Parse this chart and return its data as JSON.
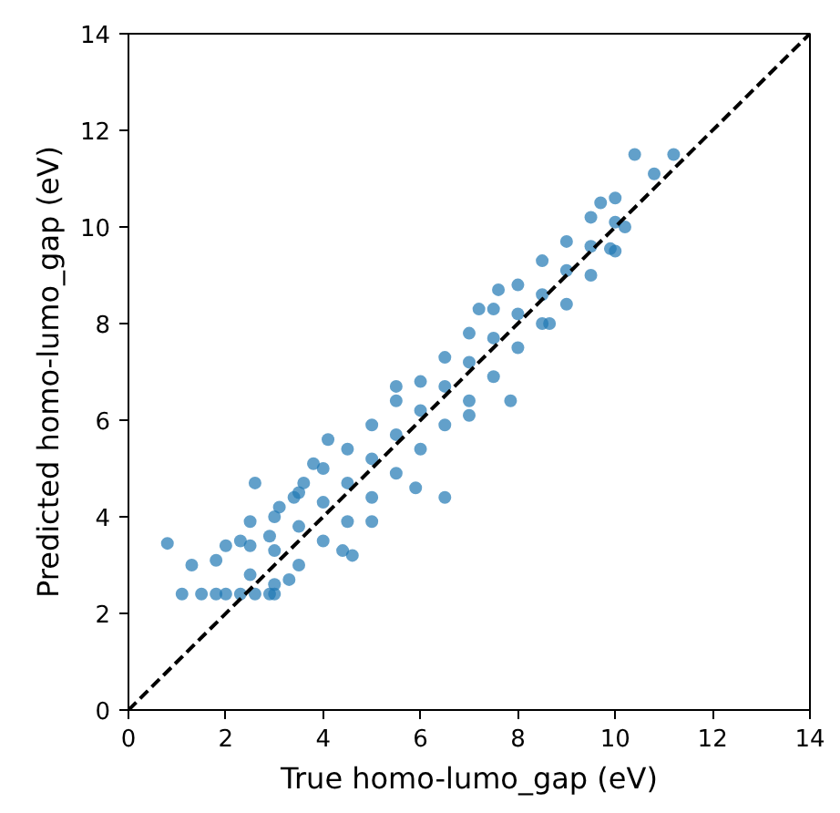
{
  "chart_data": {
    "type": "scatter",
    "xlabel": "True homo-lumo_gap (eV)",
    "ylabel": "Predicted homo-lumo_gap (eV)",
    "xlim": [
      0,
      14
    ],
    "ylim": [
      0,
      14
    ],
    "xticks": [
      0,
      2,
      4,
      6,
      8,
      10,
      12,
      14
    ],
    "yticks": [
      0,
      2,
      4,
      6,
      8,
      10,
      12,
      14
    ],
    "grid": false,
    "marker": "circle",
    "series": [
      {
        "color": "#1f77b4",
        "x": [
          0.8,
          1.1,
          1.3,
          1.5,
          1.8,
          2.0,
          2.3,
          2.6,
          2.9,
          3.0,
          1.8,
          2.0,
          2.3,
          2.6,
          2.5,
          2.9,
          3.3,
          3.4,
          3.6,
          3.1,
          3.8,
          4.1,
          4.4,
          4.6,
          5.0,
          6.5,
          5.5,
          5.9,
          7.0,
          7.85,
          8.65,
          7.2,
          7.6,
          9.7,
          10.2,
          9.9,
          10.4,
          10.8,
          11.2,
          2.5,
          3,
          3.5,
          4,
          4.5,
          5,
          5.5,
          6,
          6.5,
          7,
          7.5,
          8,
          8.5,
          9,
          9.5,
          10,
          2.5,
          3,
          3.5,
          4,
          4.5,
          5,
          5.5,
          6,
          6.5,
          7,
          7.5,
          8,
          8.5,
          9,
          9.5,
          10,
          3,
          3.5,
          4,
          4.5,
          5,
          5.5,
          6,
          6.5,
          7,
          7.5,
          8,
          8.5,
          9,
          9.5,
          10
        ],
        "values": [
          3.45,
          2.4,
          3.0,
          2.4,
          2.4,
          2.4,
          2.4,
          2.4,
          2.4,
          2.4,
          3.1,
          3.4,
          3.5,
          4.7,
          3.9,
          3.6,
          2.7,
          4.4,
          4.7,
          4.2,
          5.1,
          5.6,
          3.3,
          3.2,
          3.9,
          4.4,
          6.7,
          4.6,
          6.1,
          6.4,
          8.0,
          8.3,
          8.7,
          10.5,
          10.0,
          9.55,
          11.5,
          11.1,
          11.5,
          3.4,
          4.0,
          4.5,
          5.0,
          5.4,
          5.9,
          6.4,
          6.8,
          7.3,
          7.8,
          8.3,
          8.8,
          9.3,
          9.7,
          10.2,
          10.6,
          2.8,
          3.3,
          3.8,
          4.3,
          4.7,
          5.2,
          5.7,
          6.2,
          6.7,
          7.2,
          7.7,
          8.2,
          8.6,
          9.1,
          9.6,
          10.1,
          2.6,
          3.0,
          3.5,
          3.9,
          4.4,
          4.9,
          5.4,
          5.9,
          6.4,
          6.9,
          7.5,
          8.0,
          8.4,
          9.0,
          9.5
        ]
      },
      {
        "type": "line",
        "color": "#000000",
        "line_style": "dashed",
        "marker": "none",
        "x": [
          0,
          14
        ],
        "values": [
          0,
          14
        ]
      }
    ]
  }
}
